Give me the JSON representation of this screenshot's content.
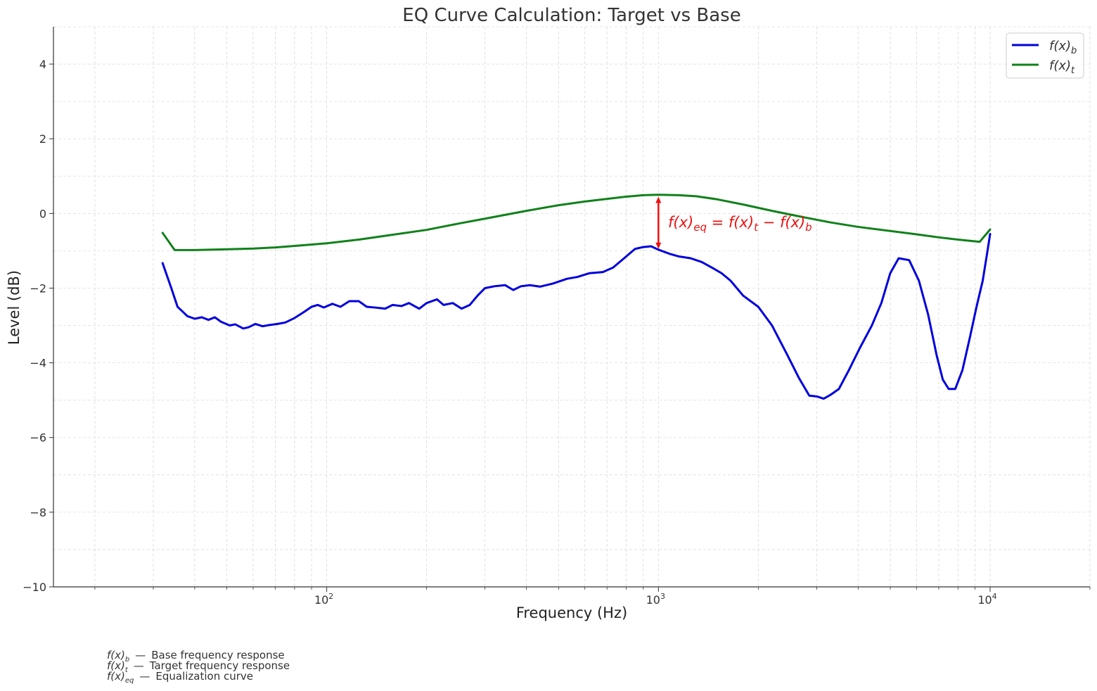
{
  "chart_data": {
    "type": "line",
    "title": "EQ Curve Calculation: Target vs Base",
    "xlabel": "Frequency (Hz)",
    "ylabel": "Level (dB)",
    "xscale": "log",
    "xlim": [
      15,
      20000
    ],
    "ylim": [
      -10,
      5
    ],
    "grid": true,
    "legend_position": "top-right",
    "x_ticks": [
      {
        "value": 100,
        "label": "10",
        "exp": "2"
      },
      {
        "value": 1000,
        "label": "10",
        "exp": "3"
      },
      {
        "value": 10000,
        "label": "10",
        "exp": "4"
      }
    ],
    "y_ticks": [
      {
        "value": 4,
        "label": "4"
      },
      {
        "value": 2,
        "label": "2"
      },
      {
        "value": 0,
        "label": "0"
      },
      {
        "value": -2,
        "label": "−2"
      },
      {
        "value": -4,
        "label": "−4"
      },
      {
        "value": -6,
        "label": "−6"
      },
      {
        "value": -8,
        "label": "−8"
      },
      {
        "value": -10,
        "label": "−10"
      }
    ],
    "series": [
      {
        "name": "f(x)_b",
        "color": "#0000dd",
        "points": [
          [
            32,
            -1.33
          ],
          [
            34,
            -2.0
          ],
          [
            35.5,
            -2.5
          ],
          [
            36.5,
            -2.6
          ],
          [
            38,
            -2.75
          ],
          [
            40,
            -2.82
          ],
          [
            42,
            -2.78
          ],
          [
            44,
            -2.85
          ],
          [
            46,
            -2.78
          ],
          [
            48,
            -2.9
          ],
          [
            51,
            -3.0
          ],
          [
            53,
            -2.97
          ],
          [
            56,
            -3.08
          ],
          [
            58,
            -3.05
          ],
          [
            61,
            -2.96
          ],
          [
            64,
            -3.02
          ],
          [
            67,
            -2.99
          ],
          [
            71,
            -2.96
          ],
          [
            75,
            -2.92
          ],
          [
            80,
            -2.8
          ],
          [
            85,
            -2.65
          ],
          [
            90,
            -2.5
          ],
          [
            94,
            -2.45
          ],
          [
            98,
            -2.52
          ],
          [
            104,
            -2.42
          ],
          [
            110,
            -2.5
          ],
          [
            117,
            -2.35
          ],
          [
            125,
            -2.35
          ],
          [
            132,
            -2.5
          ],
          [
            140,
            -2.52
          ],
          [
            150,
            -2.55
          ],
          [
            158,
            -2.45
          ],
          [
            168,
            -2.48
          ],
          [
            177,
            -2.4
          ],
          [
            190,
            -2.55
          ],
          [
            200,
            -2.4
          ],
          [
            215,
            -2.3
          ],
          [
            225,
            -2.45
          ],
          [
            240,
            -2.4
          ],
          [
            255,
            -2.55
          ],
          [
            270,
            -2.45
          ],
          [
            285,
            -2.2
          ],
          [
            300,
            -2.0
          ],
          [
            320,
            -1.95
          ],
          [
            345,
            -1.92
          ],
          [
            365,
            -2.05
          ],
          [
            385,
            -1.95
          ],
          [
            410,
            -1.92
          ],
          [
            440,
            -1.96
          ],
          [
            480,
            -1.88
          ],
          [
            530,
            -1.75
          ],
          [
            570,
            -1.7
          ],
          [
            620,
            -1.6
          ],
          [
            680,
            -1.57
          ],
          [
            730,
            -1.45
          ],
          [
            800,
            -1.15
          ],
          [
            850,
            -0.95
          ],
          [
            900,
            -0.9
          ],
          [
            950,
            -0.88
          ],
          [
            1000,
            -0.97
          ],
          [
            1080,
            -1.08
          ],
          [
            1150,
            -1.15
          ],
          [
            1250,
            -1.2
          ],
          [
            1350,
            -1.3
          ],
          [
            1450,
            -1.45
          ],
          [
            1550,
            -1.6
          ],
          [
            1650,
            -1.8
          ],
          [
            1800,
            -2.2
          ],
          [
            2000,
            -2.5
          ],
          [
            2200,
            -3.0
          ],
          [
            2450,
            -3.8
          ],
          [
            2650,
            -4.4
          ],
          [
            2850,
            -4.88
          ],
          [
            3000,
            -4.9
          ],
          [
            3150,
            -4.96
          ],
          [
            3300,
            -4.86
          ],
          [
            3500,
            -4.7
          ],
          [
            3750,
            -4.2
          ],
          [
            4050,
            -3.6
          ],
          [
            4400,
            -3.0
          ],
          [
            4700,
            -2.4
          ],
          [
            5000,
            -1.6
          ],
          [
            5300,
            -1.2
          ],
          [
            5700,
            -1.25
          ],
          [
            6100,
            -1.8
          ],
          [
            6500,
            -2.7
          ],
          [
            6900,
            -3.8
          ],
          [
            7200,
            -4.45
          ],
          [
            7500,
            -4.7
          ],
          [
            7850,
            -4.7
          ],
          [
            8250,
            -4.2
          ],
          [
            8700,
            -3.3
          ],
          [
            9100,
            -2.5
          ],
          [
            9500,
            -1.8
          ],
          [
            9800,
            -1.05
          ],
          [
            10000,
            -0.55
          ]
        ]
      },
      {
        "name": "f(x)_t",
        "color": "#11811b",
        "points": [
          [
            32,
            -0.52
          ],
          [
            34.8,
            -0.98
          ],
          [
            40,
            -0.98
          ],
          [
            50,
            -0.96
          ],
          [
            60,
            -0.94
          ],
          [
            70,
            -0.91
          ],
          [
            80,
            -0.87
          ],
          [
            100,
            -0.8
          ],
          [
            125,
            -0.7
          ],
          [
            150,
            -0.6
          ],
          [
            200,
            -0.44
          ],
          [
            250,
            -0.27
          ],
          [
            300,
            -0.14
          ],
          [
            400,
            0.07
          ],
          [
            500,
            0.22
          ],
          [
            600,
            0.32
          ],
          [
            700,
            0.39
          ],
          [
            800,
            0.45
          ],
          [
            900,
            0.49
          ],
          [
            1000,
            0.5
          ],
          [
            1150,
            0.49
          ],
          [
            1300,
            0.46
          ],
          [
            1500,
            0.38
          ],
          [
            1800,
            0.24
          ],
          [
            2200,
            0.07
          ],
          [
            2700,
            -0.09
          ],
          [
            3300,
            -0.24
          ],
          [
            4000,
            -0.36
          ],
          [
            5000,
            -0.47
          ],
          [
            6000,
            -0.56
          ],
          [
            7000,
            -0.64
          ],
          [
            8000,
            -0.7
          ],
          [
            9300,
            -0.76
          ],
          [
            10000,
            -0.43
          ]
        ]
      }
    ],
    "annotation": {
      "x": 1000,
      "y_from": 0.45,
      "y_to": -0.95,
      "color": "#ee1111"
    }
  },
  "footnotes": [
    {
      "sym": "f(x)",
      "sub": "b",
      "desc": "Base frequency response"
    },
    {
      "sym": "f(x)",
      "sub": "t",
      "desc": "Target frequency response"
    },
    {
      "sym": "f(x)",
      "sub": "eq",
      "desc": "Equalization curve"
    }
  ]
}
